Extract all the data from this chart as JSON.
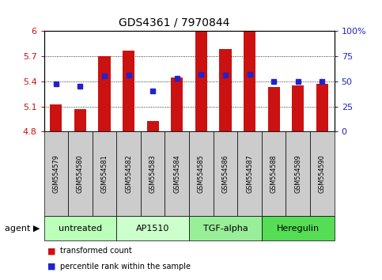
{
  "title": "GDS4361 / 7970844",
  "samples": [
    "GSM554579",
    "GSM554580",
    "GSM554581",
    "GSM554582",
    "GSM554583",
    "GSM554584",
    "GSM554585",
    "GSM554586",
    "GSM554587",
    "GSM554588",
    "GSM554589",
    "GSM554590"
  ],
  "bar_values": [
    5.12,
    5.07,
    5.7,
    5.76,
    4.93,
    5.44,
    5.99,
    5.78,
    5.99,
    5.33,
    5.35,
    5.37
  ],
  "percentile_values": [
    47,
    45,
    55,
    56,
    40,
    53,
    57,
    56,
    57,
    50,
    50,
    50
  ],
  "ymin": 4.8,
  "ymax": 6.0,
  "yticks": [
    4.8,
    5.1,
    5.4,
    5.7,
    6.0
  ],
  "ytick_labels": [
    "4.8",
    "5.1",
    "5.4",
    "5.7",
    "6"
  ],
  "y2min": 0,
  "y2max": 100,
  "y2ticks": [
    0,
    25,
    50,
    75,
    100
  ],
  "y2tick_labels": [
    "0",
    "25",
    "50",
    "75",
    "100%"
  ],
  "bar_color": "#cc1111",
  "percentile_color": "#2222cc",
  "agent_groups": [
    {
      "label": "untreated",
      "start": 0,
      "end": 3,
      "color": "#bbffbb"
    },
    {
      "label": "AP1510",
      "start": 3,
      "end": 6,
      "color": "#ccffcc"
    },
    {
      "label": "TGF-alpha",
      "start": 6,
      "end": 9,
      "color": "#99ee99"
    },
    {
      "label": "Heregulin",
      "start": 9,
      "end": 12,
      "color": "#55dd55"
    }
  ],
  "legend_items": [
    {
      "label": "transformed count",
      "color": "#cc1111"
    },
    {
      "label": "percentile rank within the sample",
      "color": "#2222cc"
    }
  ],
  "agent_label": "agent",
  "sample_box_color": "#cccccc",
  "plot_bg": "#ffffff",
  "grid_color": "#000000"
}
